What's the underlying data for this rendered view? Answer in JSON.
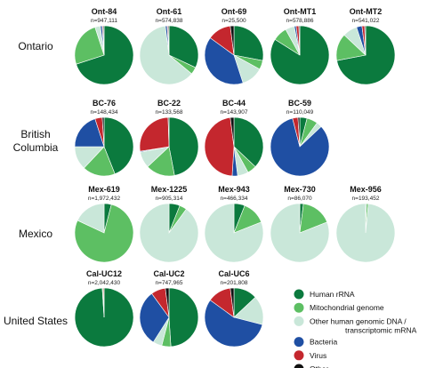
{
  "chart_data": {
    "type": "pie",
    "colors": {
      "human_rrna": "#0b7a3e",
      "mito": "#5dbf63",
      "other_human": "#c9e7d9",
      "bacteria": "#1f4fa3",
      "virus": "#c4272e",
      "other": "#111111"
    },
    "legend": [
      {
        "key": "human_rrna",
        "label": "Human rRNA"
      },
      {
        "key": "mito",
        "label": "Mitochondrial genome"
      },
      {
        "key": "other_human",
        "label": "Other human genomic DNA /",
        "label2": "transcriptomic mRNA"
      },
      {
        "key": "bacteria",
        "label": "Bacteria"
      },
      {
        "key": "virus",
        "label": "Virus"
      },
      {
        "key": "other",
        "label": "Other"
      }
    ],
    "rows": [
      {
        "label": [
          "Ontario"
        ],
        "samples": [
          {
            "name": "Ont-84",
            "n": "n=947,111",
            "slices": {
              "human_rrna": 70,
              "mito": 25,
              "other_human": 3,
              "bacteria": 1,
              "virus": 0.5,
              "other": 0.5
            }
          },
          {
            "name": "Ont-61",
            "n": "n=574,838",
            "slices": {
              "human_rrna": 32,
              "mito": 4,
              "other_human": 62,
              "bacteria": 1,
              "virus": 0.5,
              "other": 0.5
            }
          },
          {
            "name": "Ont-69",
            "n": "n=25,500",
            "slices": {
              "human_rrna": 28,
              "mito": 5,
              "other_human": 12,
              "bacteria": 40,
              "virus": 13,
              "other": 2
            }
          },
          {
            "name": "Ont-MT1",
            "n": "n=578,886",
            "slices": {
              "human_rrna": 84,
              "mito": 8,
              "other_human": 5,
              "bacteria": 1,
              "virus": 1.5,
              "other": 0.5
            }
          },
          {
            "name": "Ont-MT2",
            "n": "n=541,022",
            "slices": {
              "human_rrna": 72,
              "mito": 15,
              "other_human": 8,
              "bacteria": 3,
              "virus": 1.5,
              "other": 0.5
            }
          }
        ]
      },
      {
        "label": [
          "British",
          "Columbia"
        ],
        "samples": [
          {
            "name": "BC-76",
            "n": "n=148,434",
            "slices": {
              "human_rrna": 44,
              "mito": 18,
              "other_human": 13,
              "bacteria": 20,
              "virus": 4,
              "other": 1
            }
          },
          {
            "name": "BC-22",
            "n": "n=133,568",
            "slices": {
              "human_rrna": 47,
              "mito": 16,
              "other_human": 9,
              "bacteria": 0.5,
              "virus": 27,
              "other": 0.5
            }
          },
          {
            "name": "BC-44",
            "n": "n=143,907",
            "slices": {
              "human_rrna": 37,
              "mito": 5,
              "other_human": 6,
              "bacteria": 3,
              "virus": 47,
              "other": 2
            }
          },
          {
            "name": "BC-59",
            "n": "n=110,049",
            "slices": {
              "human_rrna": 4,
              "mito": 6,
              "other_human": 3,
              "bacteria": 83,
              "virus": 3,
              "other": 1
            }
          }
        ]
      },
      {
        "label": [
          "Mexico"
        ],
        "samples": [
          {
            "name": "Mex-619",
            "n": "n=1,972,432",
            "slices": {
              "human_rrna": 4,
              "mito": 78,
              "other_human": 18,
              "bacteria": 0,
              "virus": 0,
              "other": 0
            }
          },
          {
            "name": "Mex-1225",
            "n": "n=905,314",
            "slices": {
              "human_rrna": 6,
              "mito": 4,
              "other_human": 90,
              "bacteria": 0,
              "virus": 0,
              "other": 0
            }
          },
          {
            "name": "Mex-943",
            "n": "n=466,334",
            "slices": {
              "human_rrna": 6,
              "mito": 13,
              "other_human": 81,
              "bacteria": 0,
              "virus": 0,
              "other": 0
            }
          },
          {
            "name": "Mex-730",
            "n": "n=86,070",
            "slices": {
              "human_rrna": 2,
              "mito": 17,
              "other_human": 81,
              "bacteria": 0,
              "virus": 0,
              "other": 0
            }
          },
          {
            "name": "Mex-956",
            "n": "n=193,452",
            "slices": {
              "human_rrna": 0.5,
              "mito": 1,
              "other_human": 98.5,
              "bacteria": 0,
              "virus": 0,
              "other": 0
            }
          }
        ]
      },
      {
        "label": [
          "United States"
        ],
        "samples": [
          {
            "name": "Cal-UC12",
            "n": "n=2,042,430",
            "slices": {
              "human_rrna": 99,
              "mito": 0.5,
              "other_human": 0,
              "bacteria": 0,
              "virus": 0.5,
              "other": 0
            }
          },
          {
            "name": "Cal-UC2",
            "n": "n=747,965",
            "slices": {
              "human_rrna": 49,
              "mito": 5,
              "other_human": 5,
              "bacteria": 31,
              "virus": 8,
              "other": 2
            }
          },
          {
            "name": "Cal-UC6",
            "n": "n=201,808",
            "slices": {
              "human_rrna": 13,
              "mito": 0,
              "other_human": 16,
              "bacteria": 56,
              "virus": 13,
              "other": 2
            }
          }
        ]
      }
    ]
  }
}
